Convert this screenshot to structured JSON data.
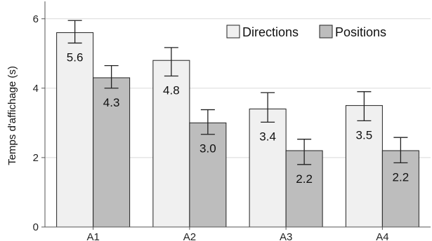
{
  "chart_data": {
    "type": "bar",
    "categories": [
      "A1",
      "A2",
      "A3",
      "A4"
    ],
    "series": [
      {
        "name": "Directions",
        "values": [
          5.6,
          4.8,
          3.4,
          3.5
        ],
        "labels": [
          "5.6",
          "4.8",
          "3.4",
          "3.5"
        ],
        "error_low": [
          5.3,
          4.35,
          3.02,
          3.06
        ],
        "error_high": [
          5.95,
          5.17,
          3.87,
          3.9
        ],
        "color": "#f0f0f0"
      },
      {
        "name": "Positions",
        "values": [
          4.3,
          3.0,
          2.2,
          2.2
        ],
        "labels": [
          "4.3",
          "3.0",
          "2.2",
          "2.2"
        ],
        "error_low": [
          4.0,
          2.67,
          1.8,
          1.85
        ],
        "error_high": [
          4.65,
          3.38,
          2.53,
          2.58
        ],
        "color": "#bdbdbd"
      }
    ],
    "ylabel": "Temps d'affichage (s)",
    "xlabel": "",
    "ylim": [
      0,
      6.5
    ],
    "yticks": [
      "0",
      "2",
      "4",
      "6"
    ],
    "grid": true,
    "legend_position": "top-right"
  }
}
